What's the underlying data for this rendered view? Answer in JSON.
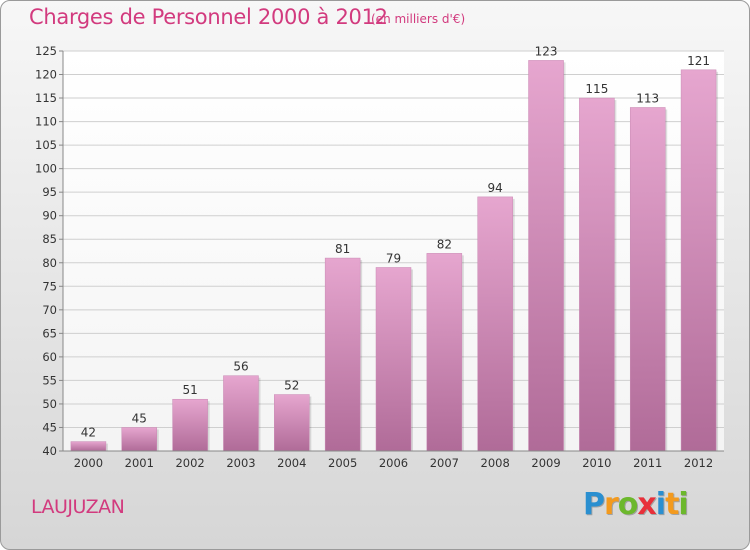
{
  "header": {
    "title": "Charges de Personnel 2000 à 2012",
    "subtitle": "(en milliers d'€)"
  },
  "footer": {
    "commune": "LAUJUZAN",
    "logo_letters": [
      "P",
      "r",
      "o",
      "x",
      "i",
      "t",
      "i"
    ],
    "logo_colors": [
      "#2a8fd0",
      "#f39a1e",
      "#6cb82c",
      "#e8303a",
      "#2a8fd0",
      "#f39a1e",
      "#6cb82c"
    ]
  },
  "chart_data": {
    "type": "bar",
    "title": "Charges de Personnel 2000 à 2012",
    "subtitle": "(en milliers d'€)",
    "categories": [
      "2000",
      "2001",
      "2002",
      "2003",
      "2004",
      "2005",
      "2006",
      "2007",
      "2008",
      "2009",
      "2010",
      "2011",
      "2012"
    ],
    "values": [
      42,
      45,
      51,
      56,
      52,
      81,
      79,
      82,
      94,
      123,
      115,
      113,
      121
    ],
    "ylim": [
      40,
      125
    ],
    "yticks": [
      40,
      45,
      50,
      55,
      60,
      65,
      70,
      75,
      80,
      85,
      90,
      95,
      100,
      105,
      110,
      115,
      120,
      125
    ],
    "grid": true,
    "bar_color_top": "#e6a6cf",
    "bar_color_bottom": "#b06b98",
    "label_color": "#333333"
  }
}
